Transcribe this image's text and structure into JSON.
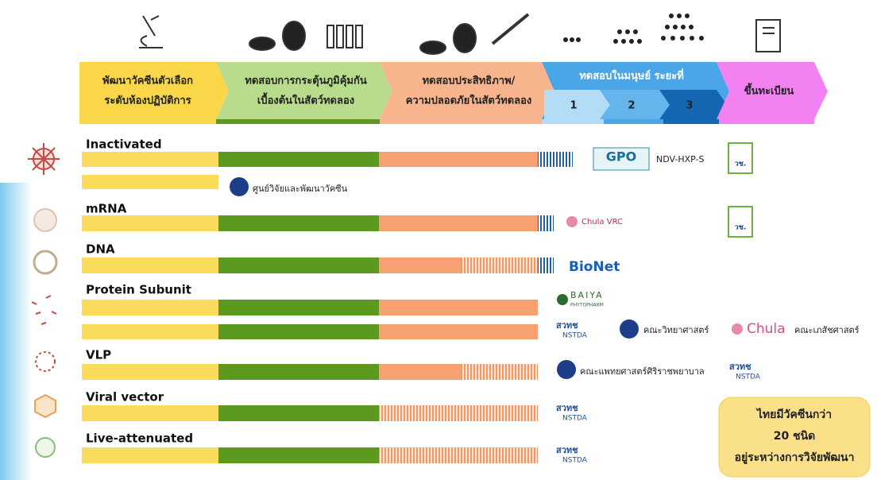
{
  "header": {
    "stages": [
      {
        "lines": [
          "พัฒนาวัคซีนตัวเลือก",
          "ระดับห้องปฏิบัติการ"
        ]
      },
      {
        "lines": [
          "ทดสอบการกระตุ้นภูมิคุ้มกัน",
          "เบื้องต้นในสัตว์ทดลอง"
        ]
      },
      {
        "lines": [
          "ทดสอบประสิทธิภาพ/",
          "ความปลอดภัยในสัตว์ทดลอง"
        ]
      },
      {
        "lines": [
          "ทดสอบในมนุษย์  ระยะที่"
        ],
        "phases": [
          "1",
          "2",
          "3"
        ]
      },
      {
        "lines": [
          "ขึ้นทะเบียน"
        ]
      }
    ]
  },
  "rows": [
    {
      "name": "Inactivated",
      "partners": [
        "GPO",
        "NDV-HXP-S",
        "วช.",
        "ศูนย์วิจัยและพัฒนาวัคซีน"
      ]
    },
    {
      "name": "mRNA",
      "partners": [
        "Chula VRC",
        "วช."
      ]
    },
    {
      "name": "DNA",
      "partners": [
        "BioNet"
      ]
    },
    {
      "name": "Protein Subunit",
      "partners": [
        "BAIYA",
        "PHYTOPHARM",
        "สวทช",
        "NSTDA",
        "คณะวิทยาศาสตร์",
        "Chula",
        "คณะเภสัชศาสตร์"
      ]
    },
    {
      "name": "VLP",
      "partners": [
        "คณะแพทยศาสตร์ศิริราชพยาบาล",
        "สวทช",
        "NSTDA"
      ]
    },
    {
      "name": "Viral vector",
      "partners": [
        "สวทช",
        "NSTDA"
      ]
    },
    {
      "name": "Live-attenuated",
      "partners": [
        "สวทช",
        "NSTDA"
      ]
    }
  ],
  "callout": {
    "lines": [
      "ไทยมีวัคซีนกว่า",
      "20 ชนิด",
      "อยู่ระหว่างการวิจัยพัฒนา"
    ]
  }
}
